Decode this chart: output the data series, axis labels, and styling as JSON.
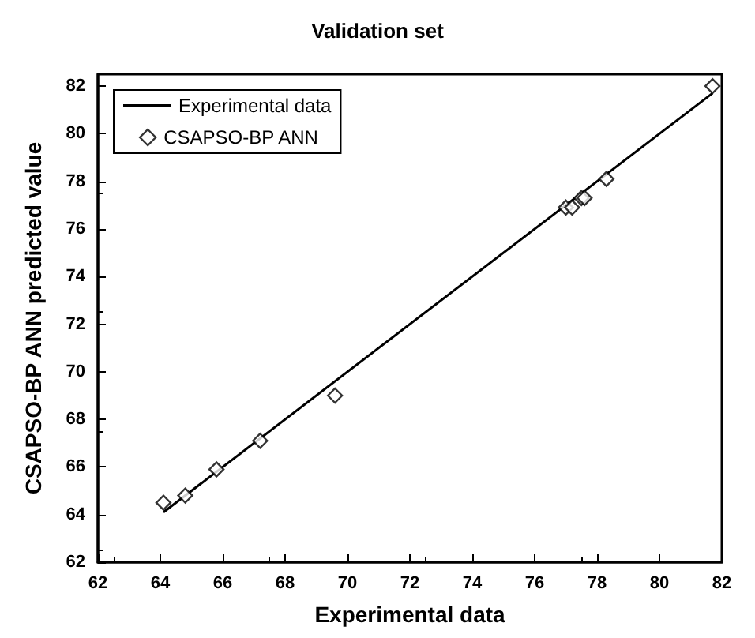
{
  "chart_data": {
    "type": "scatter",
    "title": "Validation set",
    "xlabel": "Experimental data",
    "ylabel": "CSAPSO-BP ANN predicted value",
    "xlim": [
      62,
      82
    ],
    "xticks": [
      62,
      64,
      66,
      68,
      70,
      72,
      74,
      76,
      78,
      80,
      82
    ],
    "ylim": [
      62,
      82.5
    ],
    "yticks": [
      62,
      64,
      66,
      68,
      70,
      72,
      74,
      76,
      78,
      80,
      82
    ],
    "grid": false,
    "legend": "top left",
    "series": [
      {
        "name": "Experimental data",
        "type": "line",
        "color": "#000000",
        "marker": "none",
        "line_style": "solid",
        "x": [
          64.1,
          81.7
        ],
        "values": [
          64.1,
          81.7
        ]
      },
      {
        "name": "CSAPSO-BP ANN",
        "color": "#000000",
        "marker": "diamond",
        "x": [
          64.1,
          64.8,
          65.8,
          67.2,
          69.6,
          77.0,
          77.2,
          77.5,
          77.6,
          78.3,
          81.7
        ],
        "values": [
          64.5,
          64.8,
          65.9,
          67.1,
          69.0,
          76.9,
          76.9,
          77.3,
          77.3,
          78.1,
          82.0
        ]
      }
    ]
  }
}
